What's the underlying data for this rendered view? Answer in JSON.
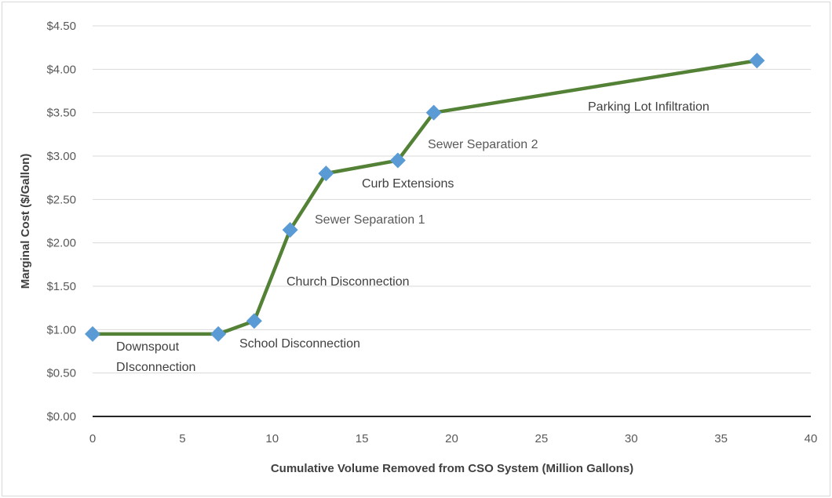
{
  "chart_data": {
    "type": "line",
    "title": "",
    "xlabel": "Cumulative Volume Removed from CSO System (Million Gallons)",
    "ylabel": "Marginal Cost ($/Gallon)",
    "xlim": [
      0,
      40
    ],
    "ylim": [
      0,
      4.5
    ],
    "x_ticks": [
      "0",
      "5",
      "10",
      "15",
      "20",
      "25",
      "30",
      "35",
      "40"
    ],
    "y_ticks": [
      "$0.00",
      "$0.50",
      "$1.00",
      "$1.50",
      "$2.00",
      "$2.50",
      "$3.00",
      "$3.50",
      "$4.00",
      "$4.50"
    ],
    "grid": "horizontal",
    "line_color": "#538135",
    "marker_color": "#5b9bd5",
    "series": [
      {
        "points": [
          {
            "x": 0,
            "y": 0.95
          },
          {
            "x": 7,
            "y": 0.95
          },
          {
            "x": 9,
            "y": 1.1
          },
          {
            "x": 11,
            "y": 2.15
          },
          {
            "x": 13,
            "y": 2.8
          },
          {
            "x": 17,
            "y": 2.95
          },
          {
            "x": 19,
            "y": 3.5
          },
          {
            "x": 37,
            "y": 4.1
          }
        ]
      }
    ],
    "annotations": [
      {
        "lines": [
          "Downspout",
          "DIsconnection"
        ]
      },
      {
        "lines": [
          "School Disconnection"
        ]
      },
      {
        "lines": [
          "Church Disconnection"
        ]
      },
      {
        "lines": [
          "Sewer Separation 1"
        ]
      },
      {
        "lines": [
          "Curb Extensions"
        ]
      },
      {
        "lines": [
          "Sewer Separation 2"
        ]
      },
      {
        "lines": [
          "Parking Lot Infiltration"
        ]
      }
    ]
  }
}
